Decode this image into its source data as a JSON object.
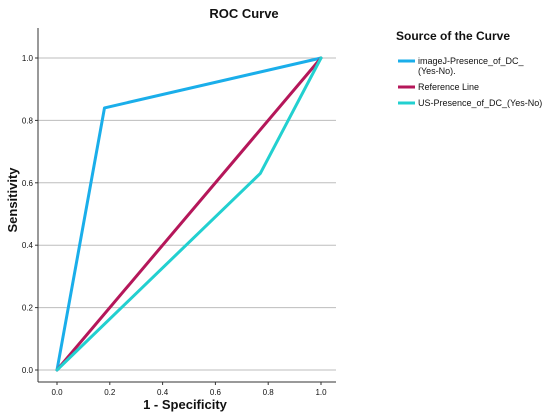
{
  "chart_data": {
    "type": "line",
    "title": "ROC Curve",
    "xlabel": "1 - Specificity",
    "ylabel": "Sensitivity",
    "xlim": [
      0,
      1
    ],
    "ylim": [
      0,
      1
    ],
    "x_ticks": [
      "0.0",
      "0.2",
      "0.4",
      "0.6",
      "0.8",
      "1.0"
    ],
    "y_ticks": [
      "0.0",
      "0.2",
      "0.4",
      "0.6",
      "0.8",
      "1.0"
    ],
    "grid": "horizontal",
    "legend_position": "right",
    "legend_title": "Source of the Curve",
    "series": [
      {
        "name": "imageJ-Presence_of_DC_ (Yes-No).",
        "legend_lines": [
          "imageJ-Presence_of_DC_",
          "(Yes-No)."
        ],
        "color": "#1aaeea",
        "points": [
          [
            0,
            0
          ],
          [
            0.18,
            0.84
          ],
          [
            1,
            1
          ]
        ]
      },
      {
        "name": "Reference Line",
        "legend_lines": [
          "Reference Line"
        ],
        "color": "#b5175a",
        "points": [
          [
            0,
            0
          ],
          [
            1,
            1
          ]
        ]
      },
      {
        "name": "US-Presence_of_DC_(Yes-No)",
        "legend_lines": [
          "US-Presence_of_DC_(Yes-No)"
        ],
        "color": "#22d0d0",
        "points": [
          [
            0,
            0
          ],
          [
            0.77,
            0.63
          ],
          [
            1,
            1
          ]
        ]
      }
    ]
  }
}
